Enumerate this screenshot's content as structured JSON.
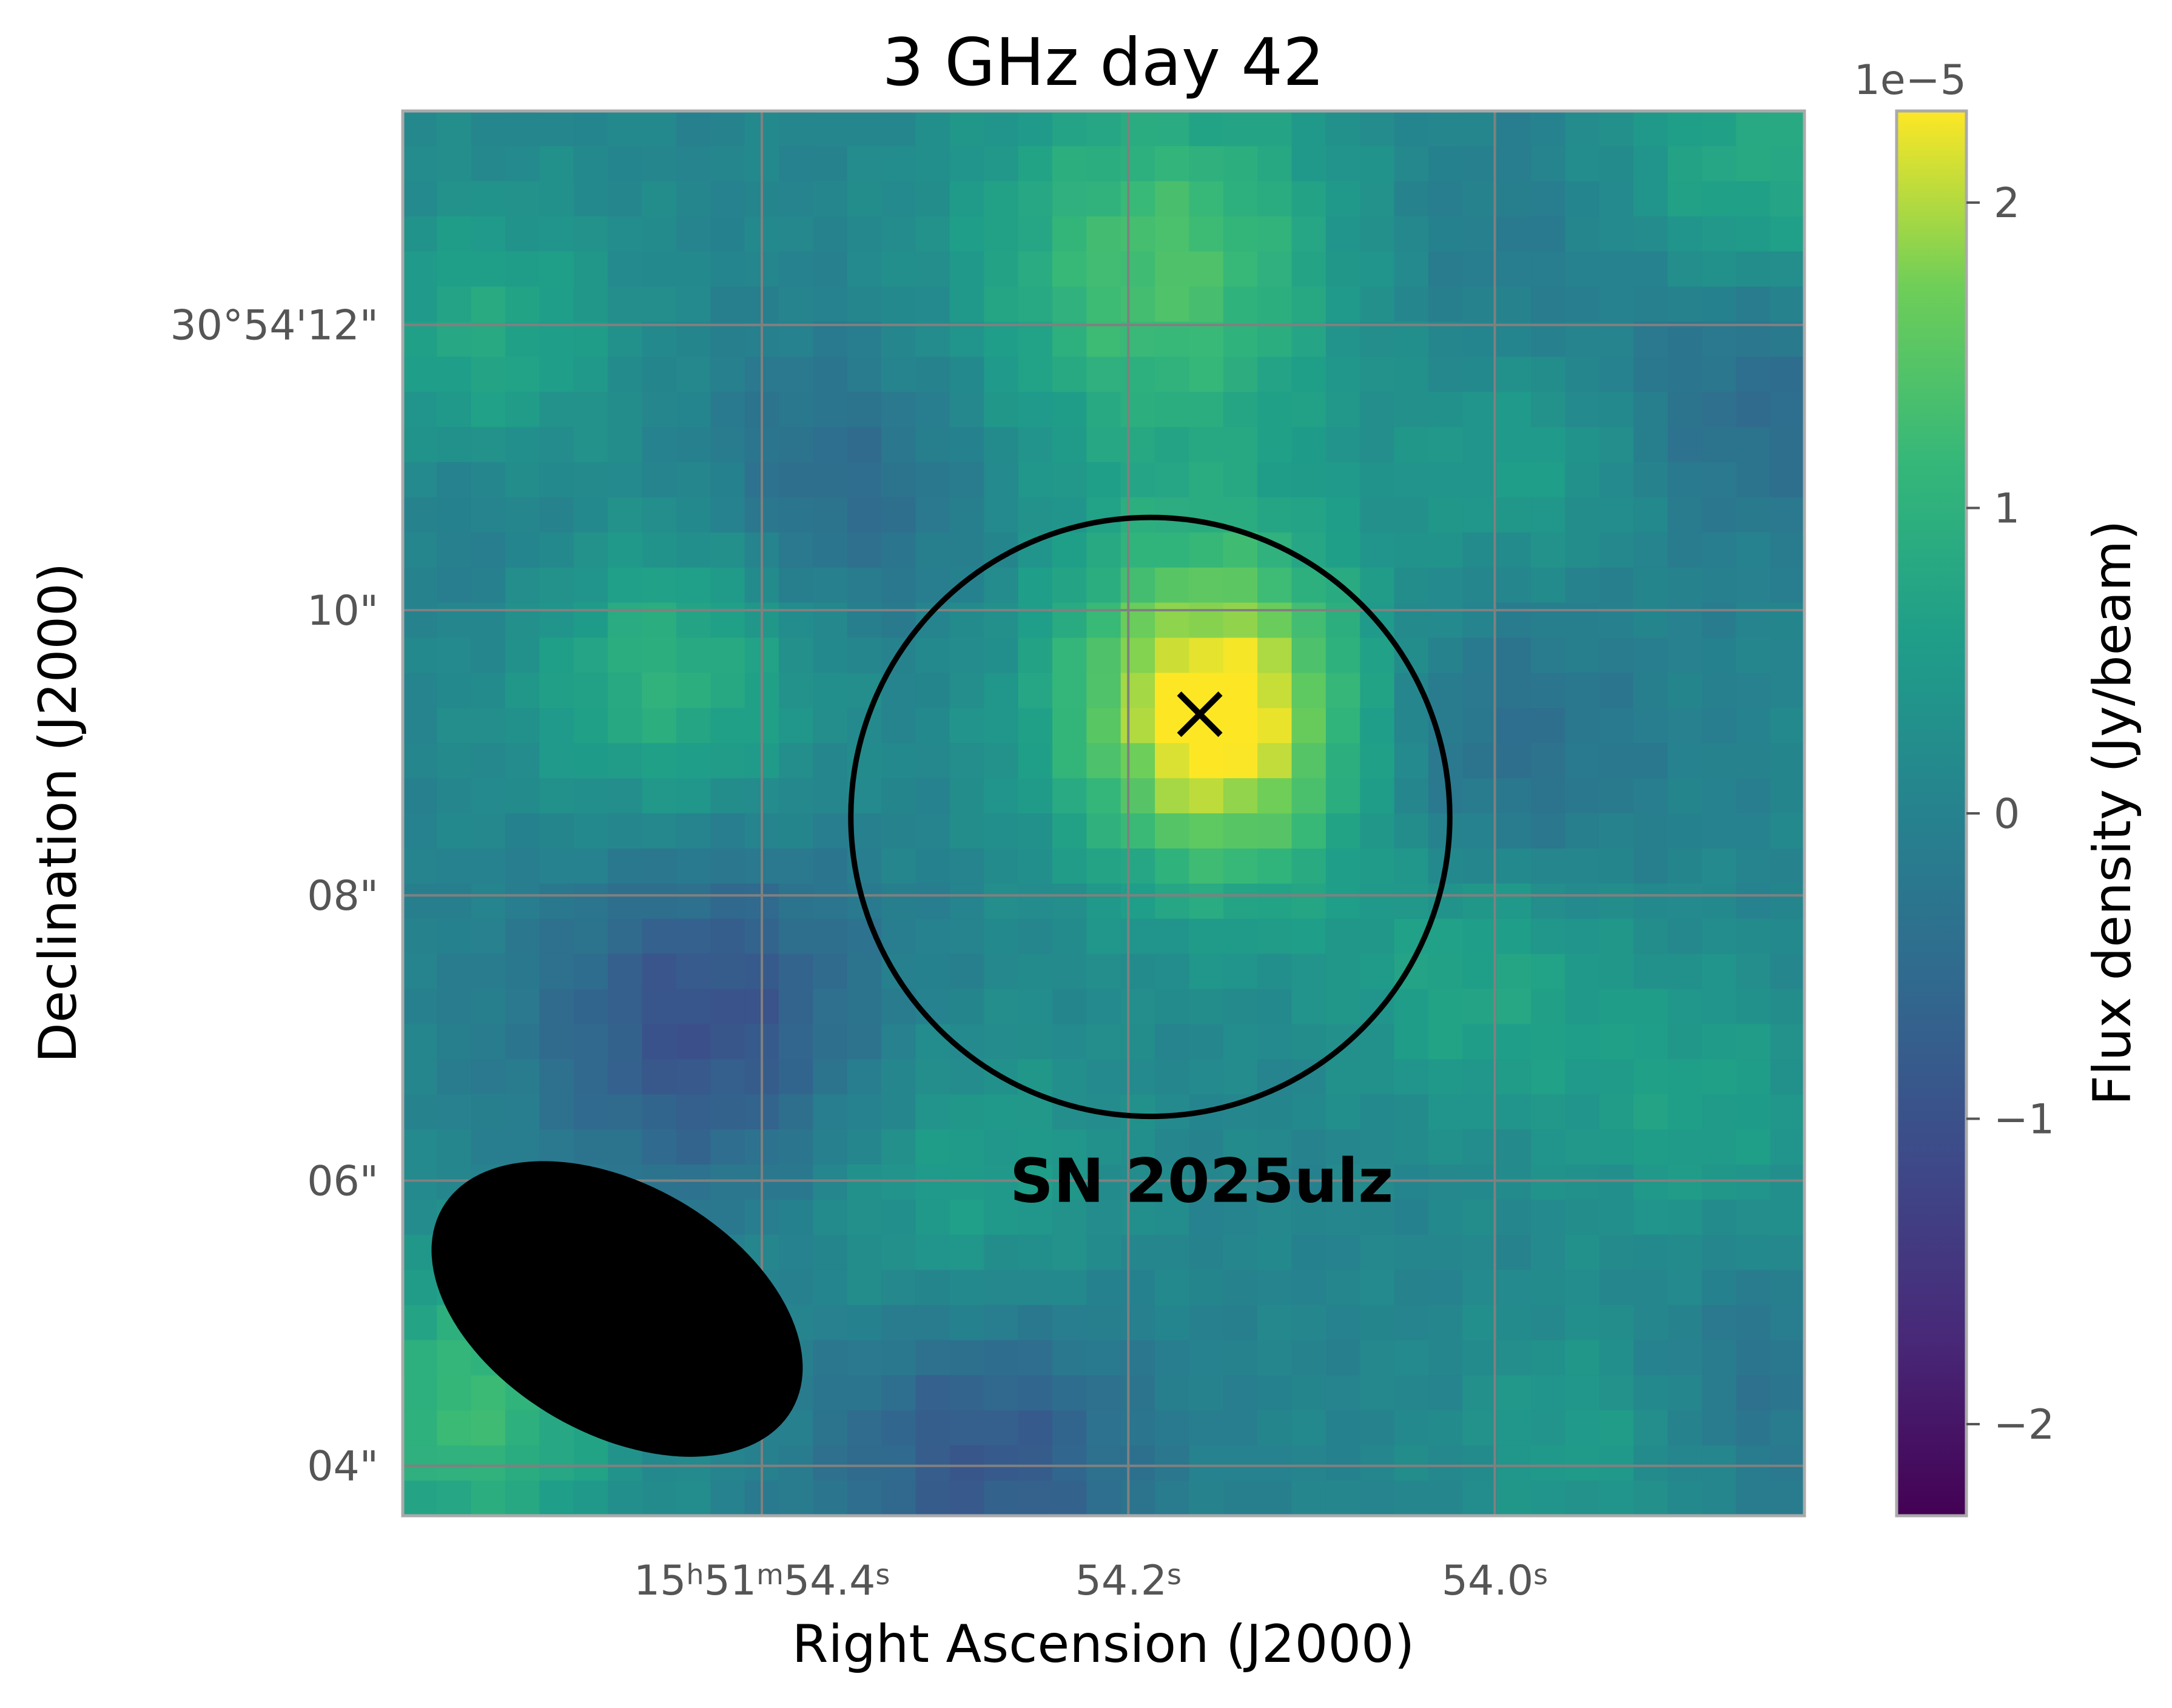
{
  "chart_data": {
    "type": "heatmap",
    "title": "3 GHz day 42",
    "xlabel": "Right Ascension (J2000)",
    "ylabel": "Declination (J2000)",
    "x_ticks": [
      {
        "value": 54.4,
        "parts": [
          [
            "15",
            "n"
          ],
          [
            "h",
            "s"
          ],
          [
            "51",
            "n"
          ],
          [
            "m",
            "s"
          ],
          [
            "54.4",
            "n"
          ],
          [
            "s",
            "s"
          ]
        ]
      },
      {
        "value": 54.2,
        "parts": [
          [
            "54.2",
            "n"
          ],
          [
            "s",
            "s"
          ]
        ]
      },
      {
        "value": 54.0,
        "parts": [
          [
            "54.0",
            "n"
          ],
          [
            "s",
            "s"
          ]
        ]
      }
    ],
    "y_ticks": [
      {
        "value": 12,
        "label": "30°54'12\""
      },
      {
        "value": 10,
        "label": "10\""
      },
      {
        "value": 8,
        "label": "08\""
      },
      {
        "value": 6,
        "label": "06\""
      },
      {
        "value": 4,
        "label": "04\""
      }
    ],
    "ra_range_s": [
      54.596,
      53.831
    ],
    "dec_range_arcsec": [
      3.65,
      13.5
    ],
    "grid": true,
    "colorbar": {
      "label": "Flux density (Jy/beam)",
      "offset_text": "1e−5",
      "range": [
        -2.3,
        2.3
      ],
      "ticks": [
        {
          "value": 2,
          "label": "2"
        },
        {
          "value": 1,
          "label": "1"
        },
        {
          "value": 0,
          "label": "0"
        },
        {
          "value": -1,
          "label": "−1"
        },
        {
          "value": -2,
          "label": "−2"
        }
      ],
      "colormap": "viridis"
    },
    "annotations": {
      "source_label": "SN 2025ulz",
      "marker_ra_s": 54.161,
      "marker_dec_arcsec": 9.27,
      "circle_center_ra_s": 54.188,
      "circle_center_dec_arcsec": 8.55,
      "circle_radius_arcsec": 2.1,
      "beam_center_ra_s": 54.479,
      "beam_center_dec_arcsec": 5.1,
      "beam_major_arcsec": 1.85,
      "beam_minor_arcsec": 1.62,
      "beam_pa_deg": 64,
      "label_ra_s": 54.16,
      "label_dec_arcsec": 6.0
    },
    "pixel_grid": {
      "cols": 41,
      "rows": 40
    },
    "components": [
      {
        "ra": 54.18,
        "dec": 12.4,
        "amp": 1.35,
        "sigma": 0.95
      },
      {
        "ra": 54.155,
        "dec": 9.45,
        "amp": 2.05,
        "sigma": 0.8
      },
      {
        "ra": 54.14,
        "dec": 8.7,
        "amp": 0.7,
        "sigma": 0.7
      },
      {
        "ra": 54.45,
        "dec": 9.6,
        "amp": 1.0,
        "sigma": 0.75
      },
      {
        "ra": 54.55,
        "dec": 11.9,
        "amp": 0.75,
        "sigma": 0.7
      },
      {
        "ra": 54.01,
        "dec": 7.5,
        "amp": 0.75,
        "sigma": 0.7
      },
      {
        "ra": 53.98,
        "dec": 11.1,
        "amp": 0.6,
        "sigma": 0.6
      },
      {
        "ra": 53.86,
        "dec": 13.1,
        "amp": 0.8,
        "sigma": 0.7
      },
      {
        "ra": 54.29,
        "dec": 5.9,
        "amp": 0.6,
        "sigma": 0.8
      },
      {
        "ra": 54.56,
        "dec": 4.4,
        "amp": 1.15,
        "sigma": 0.75
      },
      {
        "ra": 53.89,
        "dec": 6.5,
        "amp": 0.55,
        "sigma": 0.7
      },
      {
        "ra": 53.95,
        "dec": 4.2,
        "amp": 0.5,
        "sigma": 0.6
      },
      {
        "ra": 54.43,
        "dec": 7.1,
        "amp": -1.05,
        "sigma": 0.85
      },
      {
        "ra": 54.28,
        "dec": 4.1,
        "amp": -0.95,
        "sigma": 0.8
      },
      {
        "ra": 54.36,
        "dec": 10.8,
        "amp": -0.6,
        "sigma": 0.75
      },
      {
        "ra": 54.01,
        "dec": 8.9,
        "amp": -0.6,
        "sigma": 0.8
      },
      {
        "ra": 53.86,
        "dec": 11.5,
        "amp": -0.55,
        "sigma": 0.7
      },
      {
        "ra": 54.0,
        "dec": 12.3,
        "amp": -0.3,
        "sigma": 0.8
      },
      {
        "ra": 53.86,
        "dec": 4.6,
        "amp": -0.4,
        "sigma": 0.6
      },
      {
        "ra": 54.54,
        "dec": 10.6,
        "amp": -0.3,
        "sigma": 0.6
      }
    ]
  }
}
